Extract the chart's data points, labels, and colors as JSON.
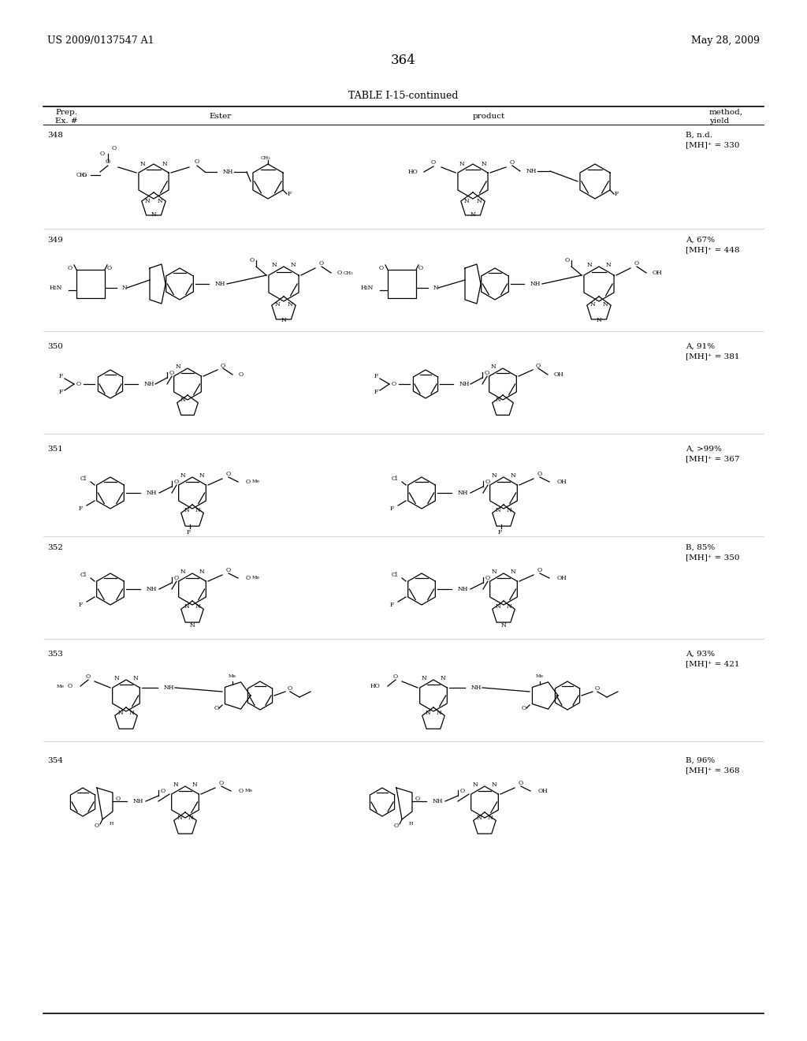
{
  "page_number": "364",
  "left_header": "US 2009/0137547 A1",
  "right_header": "May 28, 2009",
  "table_title": "TABLE I-15-continued",
  "col_headers": [
    "Prep.\nEx. #",
    "Ester",
    "product",
    "method,\nyield"
  ],
  "rows": [
    {
      "num": "348",
      "method": "B, n.d.\n[MH]⁺ = 330"
    },
    {
      "num": "349",
      "method": "A, 67%\n[MH]⁺ = 448"
    },
    {
      "num": "350",
      "method": "A, 91%\n[MH]⁺ = 381"
    },
    {
      "num": "351",
      "method": "A, >99%\n[MH]⁺ = 367"
    },
    {
      "num": "352",
      "method": "B, 85%\n[MH]⁺ = 350"
    },
    {
      "num": "353",
      "method": "A, 93%\n[MH]⁺ = 421"
    },
    {
      "num": "354",
      "method": "B, 96%\n[MH]⁺ = 368"
    }
  ],
  "bg_color": "#ffffff",
  "text_color": "#000000",
  "line_color": "#000000",
  "font_size_header": 9,
  "font_size_body": 8,
  "font_size_page_num": 12,
  "font_size_table_title": 9
}
